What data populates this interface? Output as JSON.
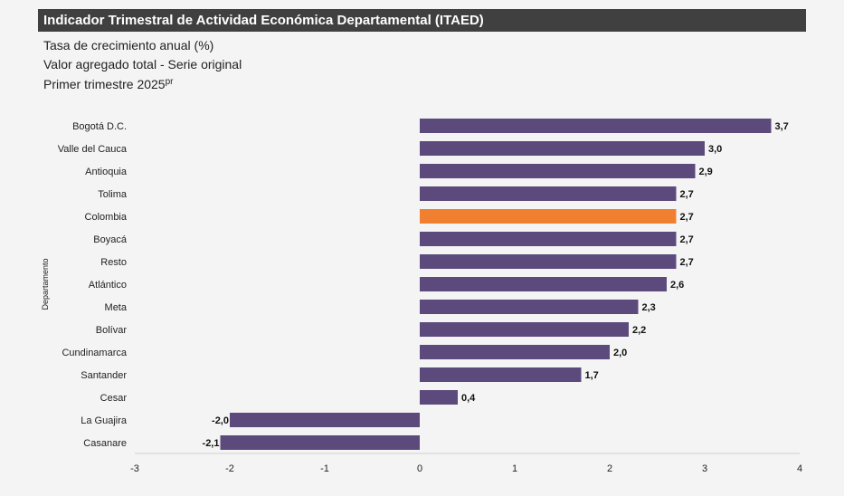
{
  "header": {
    "title": "Indicador Trimestral de Actividad Económica Departamental (ITAED)",
    "subtitle_line1": "Tasa de crecimiento anual (%)",
    "subtitle_line2": "Valor agregado total - Serie original",
    "subtitle_line3": "Primer trimestre 2025",
    "subtitle_line3_sup": "pr"
  },
  "chart_data": {
    "type": "bar",
    "orientation": "horizontal",
    "ylabel": "Departamento",
    "xlabel": "",
    "xlim": [
      -3,
      4
    ],
    "xticks": [
      -3,
      -2,
      -1,
      0,
      1,
      2,
      3,
      4
    ],
    "grid": false,
    "legend": "none",
    "colors": {
      "default": "#5c4a7c",
      "highlight": "#f08030"
    },
    "highlight_category": "Colombia",
    "categories": [
      "Bogotá D.C.",
      "Valle del Cauca",
      "Antioquia",
      "Tolima",
      "Colombia",
      "Boyacá",
      "Resto",
      "Atlántico",
      "Meta",
      "Bolívar",
      "Cundinamarca",
      "Santander",
      "Cesar",
      "La Guajira",
      "Casanare"
    ],
    "values": [
      3.7,
      3.0,
      2.9,
      2.7,
      2.7,
      2.7,
      2.7,
      2.6,
      2.3,
      2.2,
      2.0,
      1.7,
      0.4,
      -2.0,
      -2.1
    ],
    "value_labels": [
      "3,7",
      "3,0",
      "2,9",
      "2,7",
      "2,7",
      "2,7",
      "2,7",
      "2,6",
      "2,3",
      "2,2",
      "2,0",
      "1,7",
      "0,4",
      "-2,0",
      "-2,1"
    ]
  }
}
